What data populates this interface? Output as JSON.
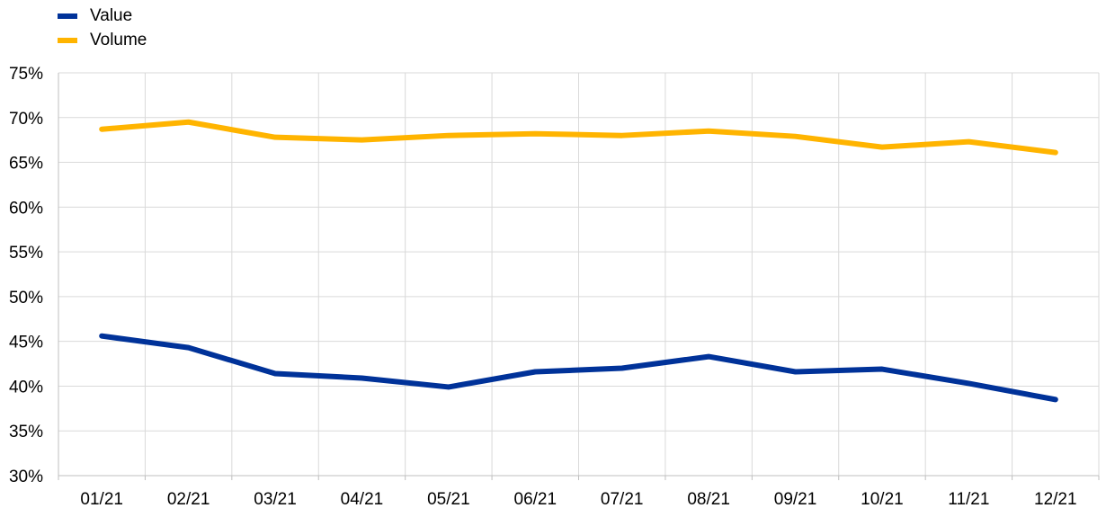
{
  "chart_data": {
    "type": "line",
    "categories": [
      "01/21",
      "02/21",
      "03/21",
      "04/21",
      "05/21",
      "06/21",
      "07/21",
      "08/21",
      "09/21",
      "10/21",
      "11/21",
      "12/21"
    ],
    "series": [
      {
        "name": "Value",
        "color": "#003299",
        "values": [
          45.6,
          44.3,
          41.4,
          40.9,
          39.9,
          41.6,
          42.0,
          43.3,
          41.6,
          41.9,
          40.3,
          38.5
        ]
      },
      {
        "name": "Volume",
        "color": "#FFB400",
        "values": [
          68.7,
          69.5,
          67.8,
          67.5,
          68.0,
          68.2,
          68.0,
          68.5,
          67.9,
          66.7,
          67.3,
          66.1
        ]
      }
    ],
    "ylim": [
      30,
      75
    ],
    "yticks": [
      30,
      35,
      40,
      45,
      50,
      55,
      60,
      65,
      70,
      75
    ],
    "ytick_labels": [
      "30%",
      "35%",
      "40%",
      "45%",
      "50%",
      "55%",
      "60%",
      "65%",
      "70%",
      "75%"
    ],
    "grid": true,
    "legend_position": "top-left",
    "title": "",
    "xlabel": "",
    "ylabel": ""
  }
}
